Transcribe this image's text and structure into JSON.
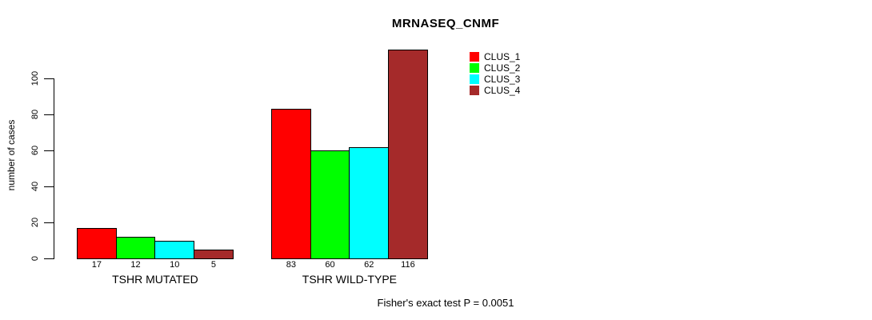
{
  "title": "MRNASEQ_CNMF",
  "y_axis_label": "number of cases",
  "caption": "Fisher's exact test P = 0.0051",
  "colors": {
    "background": "#ffffff",
    "axis": "#000000",
    "bar_border": "#000000"
  },
  "chart_data": {
    "type": "bar",
    "title": "MRNASEQ_CNMF",
    "xlabel": "",
    "ylabel": "number of cases",
    "categories": [
      "TSHR MUTATED",
      "TSHR WILD-TYPE"
    ],
    "series": [
      {
        "name": "CLUS_1",
        "color": "#ff0000",
        "values": [
          17,
          83
        ]
      },
      {
        "name": "CLUS_2",
        "color": "#00ff00",
        "values": [
          12,
          60
        ]
      },
      {
        "name": "CLUS_3",
        "color": "#00ffff",
        "values": [
          10,
          62
        ]
      },
      {
        "name": "CLUS_4",
        "color": "#a52a2a",
        "values": [
          5,
          116
        ]
      }
    ],
    "bar_value_labels_shown": true,
    "yticks": [
      0,
      20,
      40,
      60,
      80,
      100
    ],
    "ylim": [
      0,
      116
    ],
    "grid": false,
    "legend_position": "top-right",
    "annotation": "Fisher's exact test P = 0.0051"
  }
}
